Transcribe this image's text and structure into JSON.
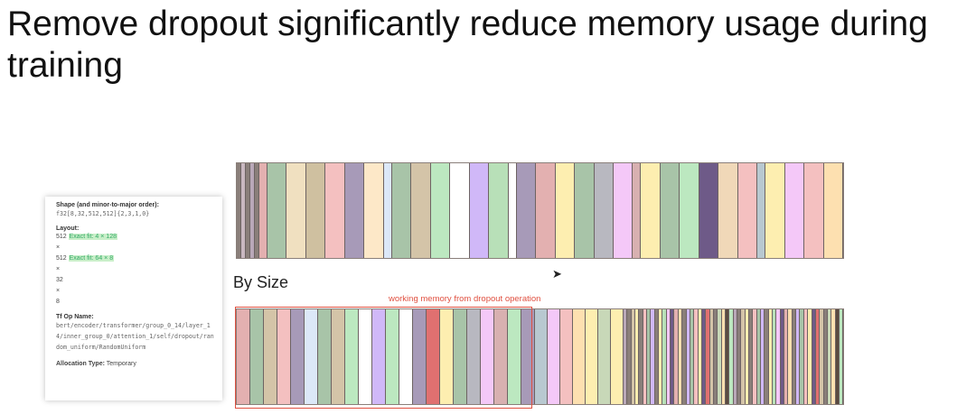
{
  "slide": {
    "title": "Remove dropout significantly reduce memory usage during training"
  },
  "panel": {
    "shape_label": "Shape (and minor-to-major order):",
    "shape_value": "f32[8,32,512,512]{2,3,1,0}",
    "layout_label": "Layout:",
    "layout_rows": [
      {
        "value": "512",
        "fit": "Exact fit: 4 × 128"
      },
      {
        "value": "×"
      },
      {
        "value": "512",
        "fit": "Exact fit: 64 × 8"
      },
      {
        "value": "×"
      },
      {
        "value": "32"
      },
      {
        "value": "×"
      },
      {
        "value": "8"
      }
    ],
    "op_label": "Tf Op Name:",
    "op_value": "bert/encoder/transformer/group_0_14/layer_14/inner_group_0/attention_1/self/dropout/random_uniform/RandomUniform",
    "alloc_label": "Allocation Type:",
    "alloc_value": "Temporary"
  },
  "by_size_label": "By Size",
  "annotation": {
    "text": "working memory from dropout operation",
    "color": "#e05040"
  },
  "top_strip_colors": [
    "#8a7f7a",
    "#c9b8c0",
    "#8a7f7a",
    "#b9a8b8",
    "#8a7f7a",
    "#e3b0b0",
    "#a8c4a8",
    "#f0e0c0",
    "#cfc0a0",
    "#f4c0c0",
    "#a79ab8",
    "#fde8c8",
    "#dce8f8",
    "#a8c4a8",
    "#d4c4a8",
    "#bce8c0",
    "#ffffff",
    "#d0b8f8",
    "#b8e0b8",
    "#ffffff",
    "#a79ab8",
    "#e3b0b0",
    "#fdeeb0",
    "#a8c4a8",
    "#b8b8c0",
    "#f4c8f8",
    "#d8b0b0",
    "#fdeeb0",
    "#a8c4a8",
    "#bce8c0",
    "#6e5a88",
    "#f0d8b8",
    "#f4c0c0",
    "#b8c8d0",
    "#fdeeb0",
    "#f4c8f8",
    "#f4c0c0",
    "#fde0b0"
  ],
  "bottom_strip_colors": [
    "#e3b0b0",
    "#a8c4a8",
    "#d4c4a8",
    "#f4c0c0",
    "#a79ab8",
    "#dce8f8",
    "#a8c4a8",
    "#d4c4a8",
    "#bce8c0",
    "#ffffff",
    "#d0b8f8",
    "#bce8c0",
    "#ffffff",
    "#a79ab8",
    "#e07070",
    "#fdeeb0",
    "#a8c4a8",
    "#b8b8c0",
    "#f4c8f8",
    "#d8b0b0",
    "#bce8c0",
    "#a79ab8",
    "#b8c8d0",
    "#f4c8f8",
    "#f4c0c0",
    "#fde0b0",
    "#fdeeb0",
    "#c8d8b8",
    "#fdeeb0"
  ],
  "bottom_strip_small_colors": [
    "#b9a8b8",
    "#8a7f7a",
    "#d4c4a8",
    "#fdeeb0",
    "#8a7f7a",
    "#f4c0c0",
    "#a8c4a8",
    "#d0b8f8",
    "#8a7f7a",
    "#fdeeb0",
    "#b8e0b8",
    "#f4c8f8",
    "#6e5a88",
    "#e3b0b0",
    "#fde0b0",
    "#8a7f7a",
    "#d0b8f8",
    "#a8c4a8",
    "#f4c0c0",
    "#fdeeb0",
    "#6e5a88",
    "#e07070",
    "#d4c4a8",
    "#8a7f7a",
    "#c8d8b8",
    "#fde0b0",
    "#5a4a40",
    "#bce8c0"
  ]
}
